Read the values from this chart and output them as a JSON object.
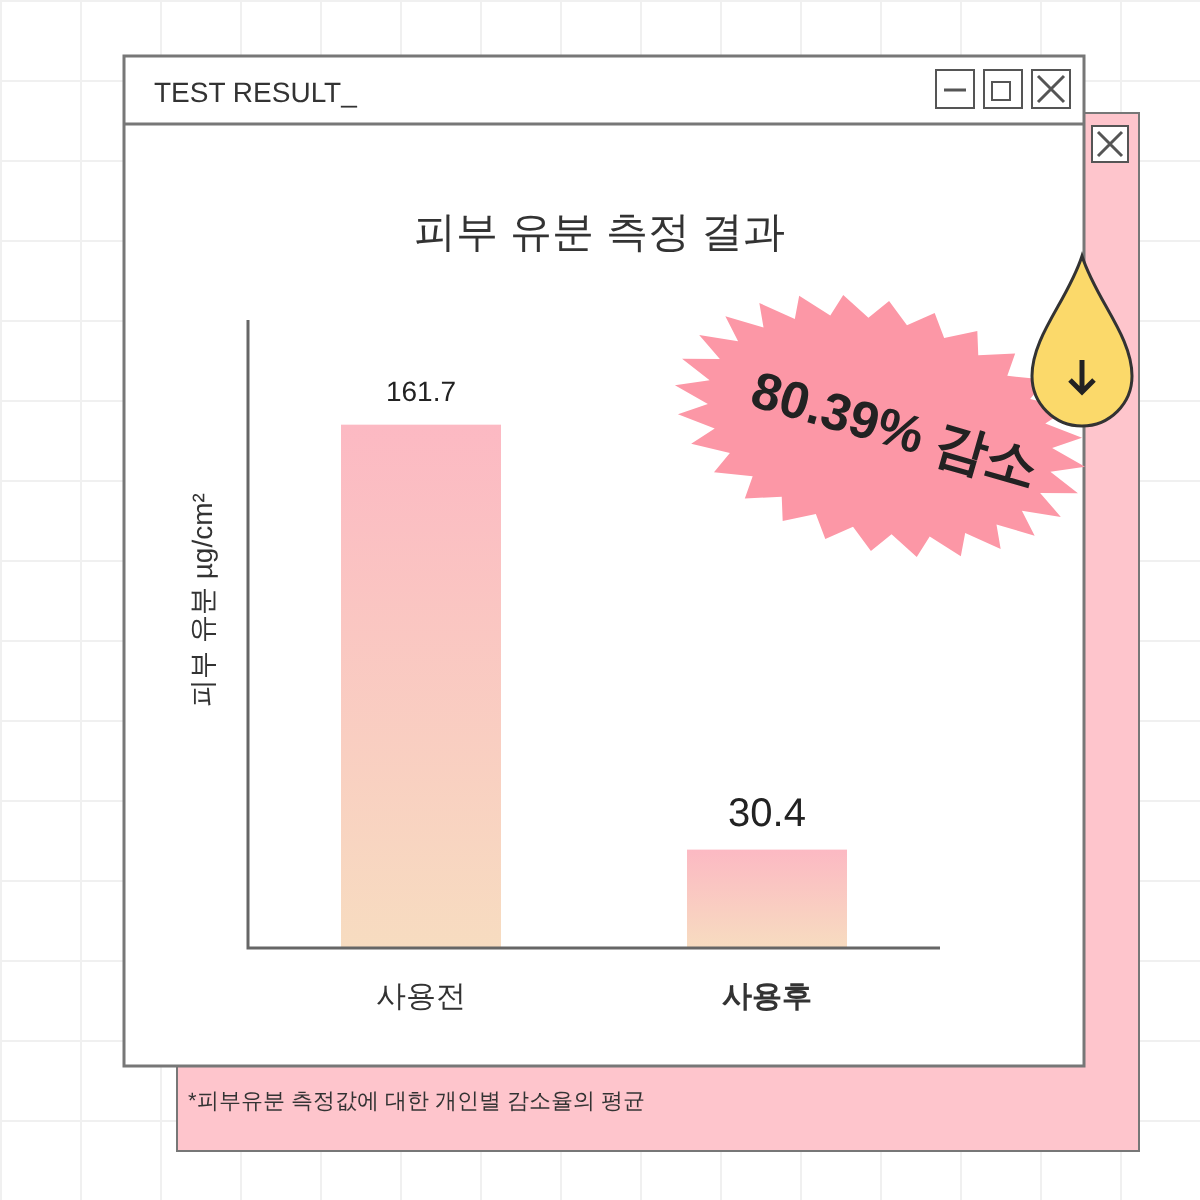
{
  "chart_data": {
    "type": "bar",
    "title": "피부 유분 측정 결과",
    "ylabel": "피부 유분 µg/cm²",
    "categories": [
      "사용전",
      "사용후"
    ],
    "series": [
      {
        "color": "#fcb9c3",
        "values": [
          161.7,
          30.4
        ]
      }
    ],
    "data_labels": true,
    "annotations": [
      "TEST RESULT_",
      "80.39% 감소",
      "*피부유분 측정값에 대한 개인별 감소율의 평균"
    ]
  }
}
